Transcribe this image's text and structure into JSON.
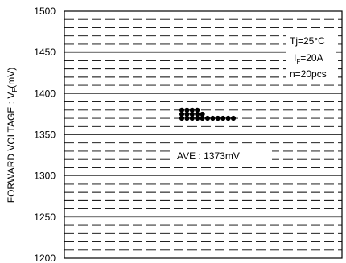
{
  "chart_data": {
    "type": "scatter",
    "ylabel": "FORWARD VOLTAGE : V",
    "ylabel_sub": "F",
    "ylabel_unit": "(mV)",
    "ylim": [
      1200,
      1500
    ],
    "y_ticks": [
      1200,
      1250,
      1300,
      1350,
      1400,
      1450,
      1500
    ],
    "major_grid_every": 50,
    "minor_grid_every": 10,
    "grid": true,
    "conditions": {
      "tj": "Tj=25°C",
      "if_prefix": "I",
      "if_sub": "F",
      "if_rest": "=20A",
      "n": "n=20pcs"
    },
    "average_label": "AVE : 1373mV",
    "average_label_at": 1324,
    "points": [
      {
        "x": 0,
        "y": 1380
      },
      {
        "x": 1,
        "y": 1380
      },
      {
        "x": 2,
        "y": 1380
      },
      {
        "x": 3,
        "y": 1380
      },
      {
        "x": 0,
        "y": 1375
      },
      {
        "x": 1,
        "y": 1375
      },
      {
        "x": 2,
        "y": 1375
      },
      {
        "x": 3,
        "y": 1375
      },
      {
        "x": 4,
        "y": 1375
      },
      {
        "x": 0,
        "y": 1370
      },
      {
        "x": 1,
        "y": 1370
      },
      {
        "x": 2,
        "y": 1370
      },
      {
        "x": 3,
        "y": 1370
      },
      {
        "x": 4,
        "y": 1370
      },
      {
        "x": 5,
        "y": 1370
      },
      {
        "x": 6,
        "y": 1370
      },
      {
        "x": 7,
        "y": 1370
      },
      {
        "x": 8,
        "y": 1370
      },
      {
        "x": 9,
        "y": 1370
      },
      {
        "x": 10,
        "y": 1370
      }
    ]
  }
}
